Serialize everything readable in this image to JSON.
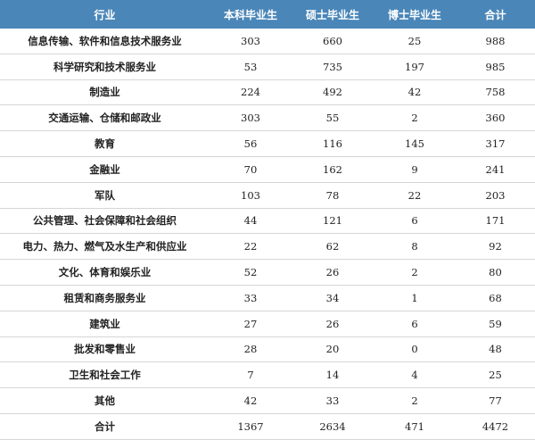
{
  "header": [
    "行业",
    "本科毕业生",
    "硕士毕业生",
    "博士毕业生",
    "合计"
  ],
  "rows": [
    [
      "信息传输、软件和信息技术服务业",
      "303",
      "660",
      "25",
      "988"
    ],
    [
      "科学研究和技术服务业",
      "53",
      "735",
      "197",
      "985"
    ],
    [
      "制造业",
      "224",
      "492",
      "42",
      "758"
    ],
    [
      "交通运输、仓储和邮政业",
      "303",
      "55",
      "2",
      "360"
    ],
    [
      "教育",
      "56",
      "116",
      "145",
      "317"
    ],
    [
      "金融业",
      "70",
      "162",
      "9",
      "241"
    ],
    [
      "军队",
      "103",
      "78",
      "22",
      "203"
    ],
    [
      "公共管理、社会保障和社会组织",
      "44",
      "121",
      "6",
      "171"
    ],
    [
      "电力、热力、燃气及水生产和供应业",
      "22",
      "62",
      "8",
      "92"
    ],
    [
      "文化、体育和娱乐业",
      "52",
      "26",
      "2",
      "80"
    ],
    [
      "租赁和商务服务业",
      "33",
      "34",
      "1",
      "68"
    ],
    [
      "建筑业",
      "27",
      "26",
      "6",
      "59"
    ],
    [
      "批发和零售业",
      "28",
      "20",
      "0",
      "48"
    ],
    [
      "卫生和社会工作",
      "7",
      "14",
      "4",
      "25"
    ],
    [
      "其他",
      "42",
      "33",
      "2",
      "77"
    ],
    [
      "合计",
      "1367",
      "2634",
      "471",
      "4472"
    ]
  ]
}
